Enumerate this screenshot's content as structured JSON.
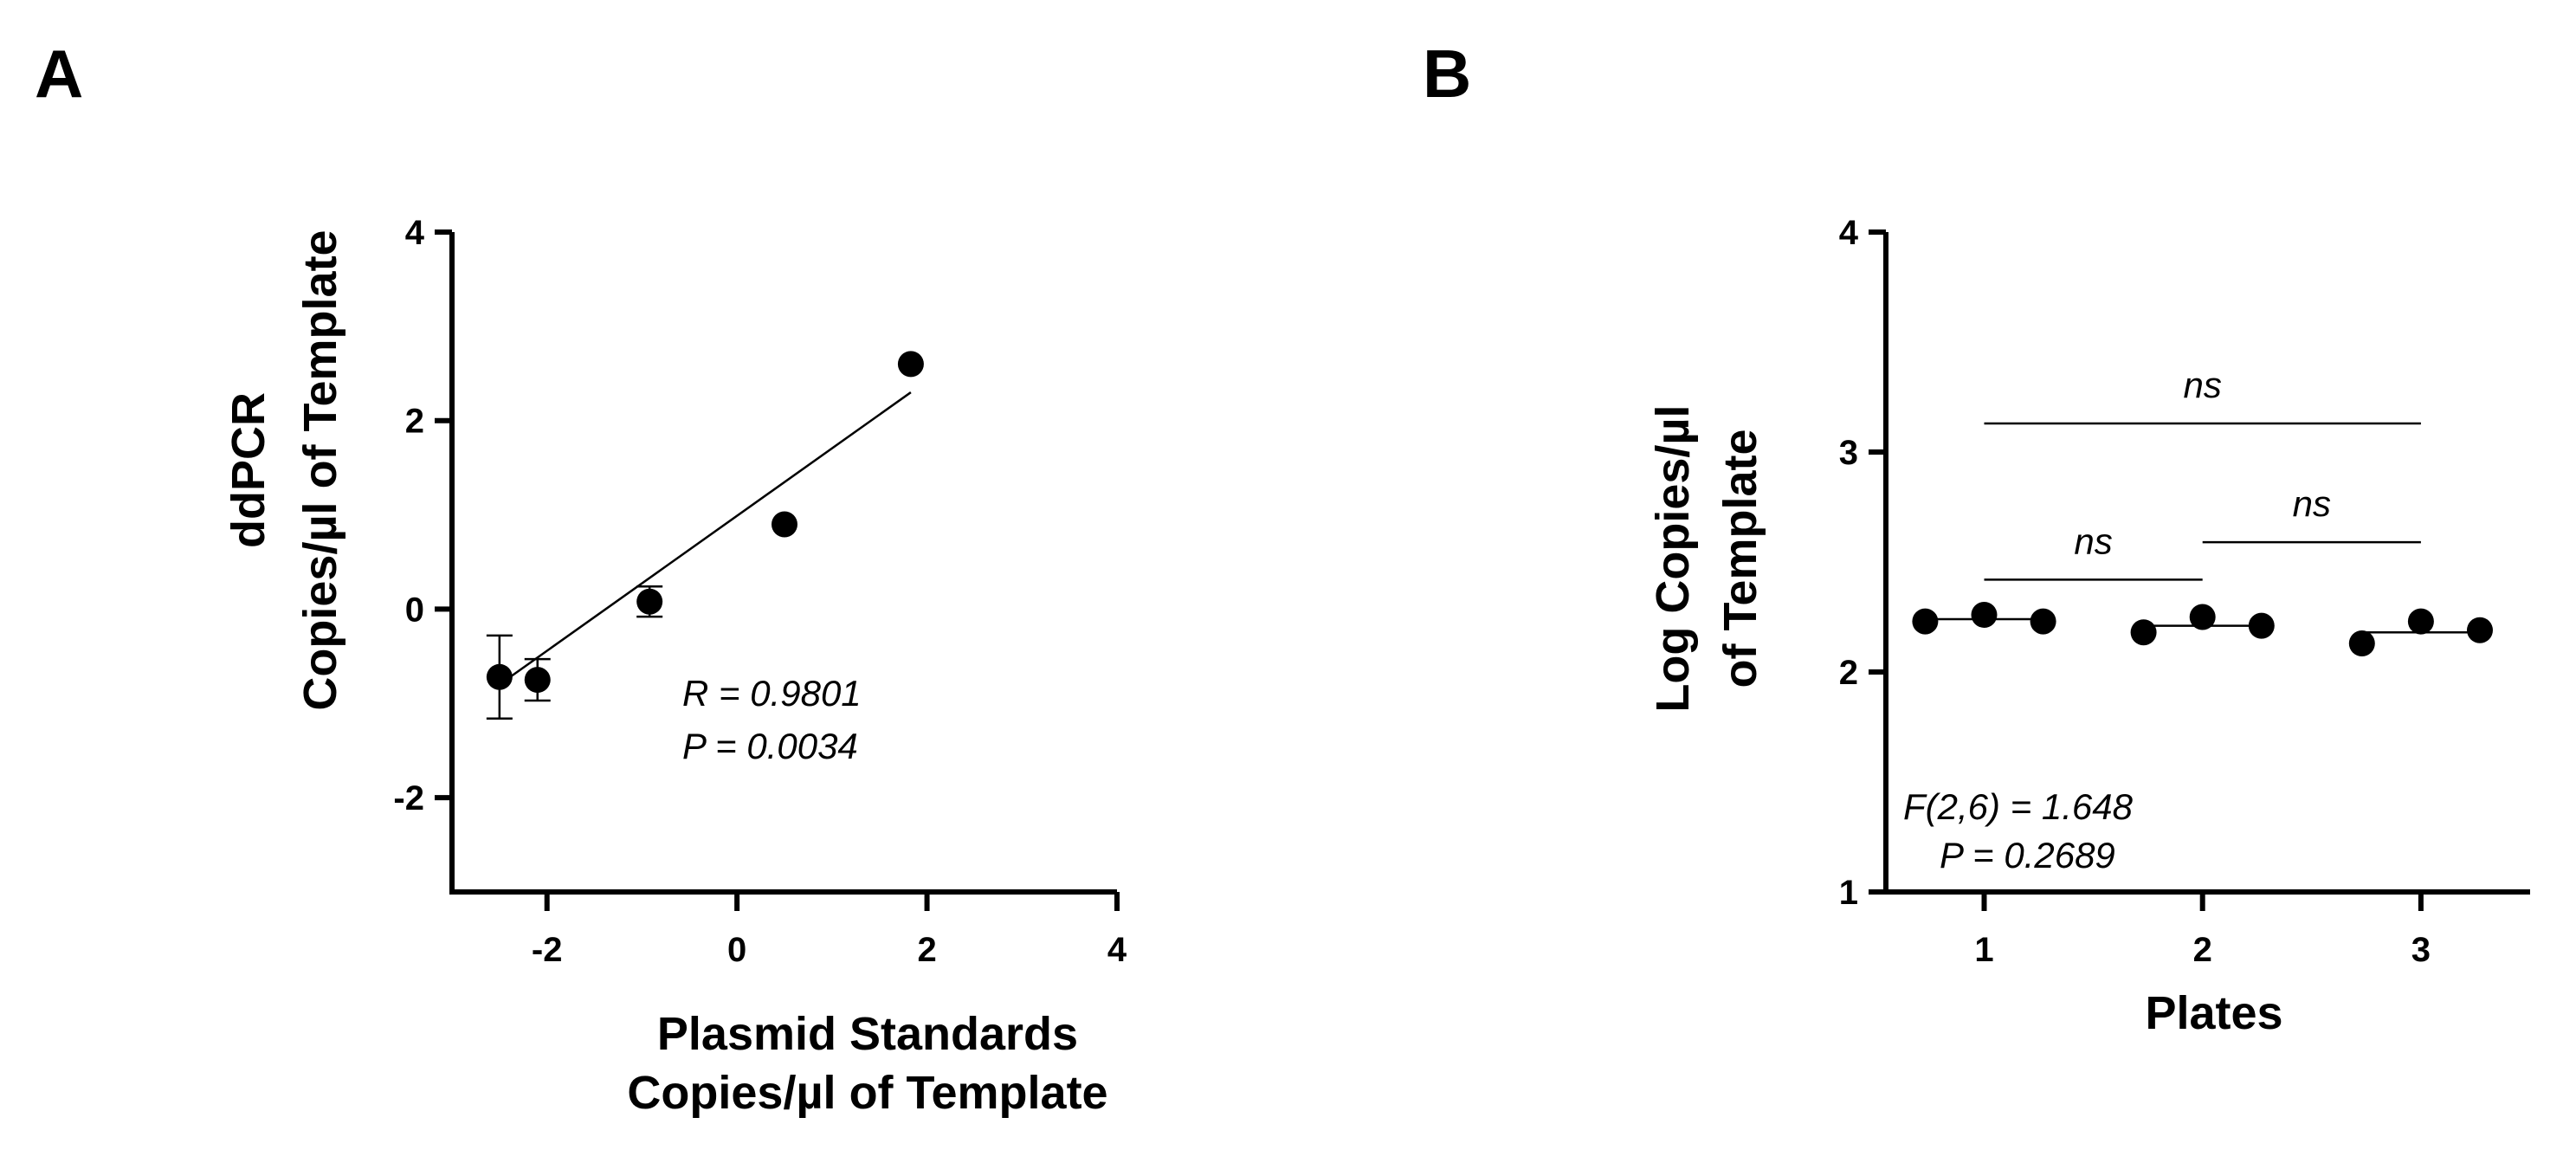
{
  "chart_data": [
    {
      "panel": "A",
      "type": "scatter",
      "title": "",
      "xlabel": [
        "Plasmid Standards",
        "Copies/µl of Template"
      ],
      "ylabel": [
        "ddPCR",
        "Copies/µl of Template"
      ],
      "xlim": [
        -3,
        4
      ],
      "ylim": [
        -3,
        4
      ],
      "xticks": [
        -2,
        0,
        2,
        4
      ],
      "xtick_labels": [
        "-2",
        "0",
        "2",
        "4"
      ],
      "yticks": [
        -2,
        0,
        2,
        4
      ],
      "ytick_labels": [
        "-2",
        "0",
        "2",
        "4"
      ],
      "points": [
        {
          "x": -2.5,
          "y": -0.72,
          "err": 0.44
        },
        {
          "x": -2.1,
          "y": -0.75,
          "err": 0.22
        },
        {
          "x": -0.92,
          "y": 0.08,
          "err": 0.16
        },
        {
          "x": 0.5,
          "y": 0.9,
          "err": 0
        },
        {
          "x": 1.83,
          "y": 2.6,
          "err": 0
        }
      ],
      "fit_line": {
        "x": [
          -2.5,
          1.83
        ],
        "y": [
          -0.8,
          2.3
        ]
      },
      "annotations": [
        "R = 0.9801",
        "P = 0.0034"
      ]
    },
    {
      "panel": "B",
      "type": "scatter",
      "title": "",
      "xlabel": "Plates",
      "ylabel": [
        "Log Copies/µl",
        "of Template"
      ],
      "xlim": [
        0.55,
        3.5
      ],
      "ylim": [
        1,
        4
      ],
      "xticks": [
        1,
        2,
        3
      ],
      "xtick_labels": [
        "1",
        "2",
        "3"
      ],
      "yticks": [
        1,
        2,
        3,
        4
      ],
      "ytick_labels": [
        "1",
        "2",
        "3",
        "4"
      ],
      "groups": [
        {
          "name": "1",
          "points": [
            {
              "x": 0.73,
              "y": 2.23
            },
            {
              "x": 1.0,
              "y": 2.26
            },
            {
              "x": 1.27,
              "y": 2.23
            }
          ],
          "mean": 2.24
        },
        {
          "name": "2",
          "points": [
            {
              "x": 1.73,
              "y": 2.18
            },
            {
              "x": 2.0,
              "y": 2.25
            },
            {
              "x": 2.27,
              "y": 2.21
            }
          ],
          "mean": 2.21
        },
        {
          "name": "3",
          "points": [
            {
              "x": 2.73,
              "y": 2.13
            },
            {
              "x": 3.0,
              "y": 2.23
            },
            {
              "x": 3.27,
              "y": 2.19
            }
          ],
          "mean": 2.18
        }
      ],
      "comparisons": [
        {
          "from": 1,
          "to": 2,
          "y": 2.42,
          "label": "ns"
        },
        {
          "from": 2,
          "to": 3,
          "y": 2.59,
          "label": "ns"
        },
        {
          "from": 1,
          "to": 3,
          "y": 3.13,
          "label": "ns"
        }
      ],
      "annotations": [
        "F(2,6) = 1.648",
        "P = 0.2689"
      ]
    }
  ]
}
